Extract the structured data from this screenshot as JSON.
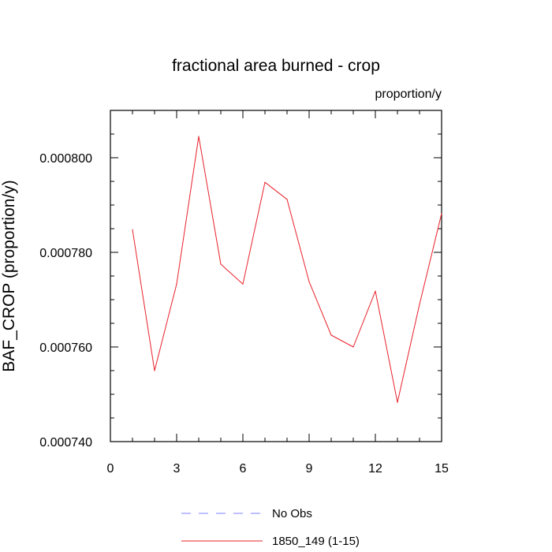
{
  "chart_data": {
    "type": "line",
    "title": "fractional area burned - crop",
    "units_label": "proportion/y",
    "ylabel": "BAF_CROP  (proportion/y)",
    "xlabel": "",
    "xlim": [
      0,
      15
    ],
    "ylim": [
      0.00074,
      0.00081
    ],
    "x_ticks": [
      0,
      3,
      6,
      9,
      12,
      15
    ],
    "x_tick_labels": [
      "0",
      "3",
      "6",
      "9",
      "12",
      "15"
    ],
    "y_ticks": [
      0.00074,
      0.00076,
      0.00078,
      0.0008
    ],
    "y_tick_labels": [
      "0.000740",
      "0.000760",
      "0.000780",
      "0.000800"
    ],
    "x": [
      1,
      2,
      3,
      4,
      5,
      6,
      7,
      8,
      9,
      10,
      11,
      12,
      13,
      14,
      15
    ],
    "series": [
      {
        "name": "1850_149 (1-15)",
        "color": "#e8202a",
        "style": "solid",
        "values": [
          0.0007848,
          0.000755,
          0.0007733,
          0.0008045,
          0.0007775,
          0.0007733,
          0.0007948,
          0.0007912,
          0.0007738,
          0.0007625,
          0.00076,
          0.0007718,
          0.0007483,
          0.000769,
          0.0007882
        ]
      }
    ],
    "legend": [
      {
        "label": "No Obs",
        "color": "#8080ff",
        "style": "dashed"
      },
      {
        "label": "1850_149 (1-15)",
        "color": "#e8202a",
        "style": "solid"
      }
    ],
    "legend_position": "bottom",
    "grid": false
  }
}
